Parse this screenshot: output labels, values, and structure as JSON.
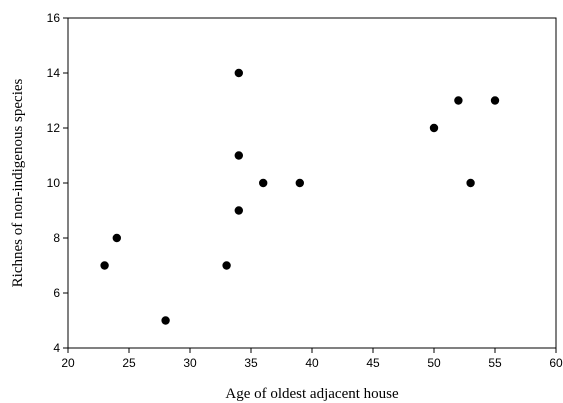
{
  "chart_data": {
    "type": "scatter",
    "x_label": "Age of oldest adjacent house",
    "y_label": "Richnes of non-indigenous species",
    "x": [
      23,
      24,
      28,
      33,
      34,
      34,
      34,
      36,
      39,
      50,
      52,
      55,
      53
    ],
    "values": [
      7,
      8,
      5,
      7,
      14,
      11,
      9,
      10,
      10,
      12,
      13,
      13,
      10
    ],
    "color": "#000000",
    "xlim": [
      20,
      60
    ],
    "xticks": [
      20,
      25,
      30,
      35,
      40,
      45,
      50,
      55,
      60
    ],
    "ylim": [
      4,
      16
    ],
    "yticks": [
      4,
      6,
      8,
      10,
      12,
      14,
      16
    ]
  }
}
